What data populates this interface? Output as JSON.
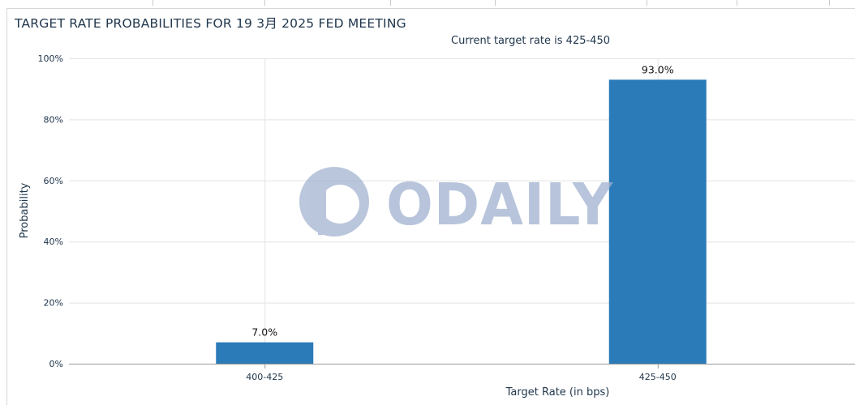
{
  "title": "TARGET RATE PROBABILITIES FOR 19 3月 2025 FED MEETING",
  "subtitle": "Current target rate is 425-450",
  "watermark": "ODAILY",
  "colors": {
    "bar": "#2b7bb8",
    "grid": "#e3e3e3",
    "text": "#21374d"
  },
  "chart_data": {
    "type": "bar",
    "categories": [
      "400-425",
      "425-450"
    ],
    "values": [
      7.0,
      93.0
    ],
    "data_labels": [
      "7.0%",
      "93.0%"
    ],
    "xlabel": "Target Rate (in bps)",
    "ylabel": "Probability",
    "ylim": [
      0,
      100
    ],
    "yticks": [
      0,
      20,
      40,
      60,
      80,
      100
    ],
    "ytick_labels": [
      "0%",
      "20%",
      "40%",
      "60%",
      "80%",
      "100%"
    ],
    "grid": true,
    "legend": "none"
  }
}
